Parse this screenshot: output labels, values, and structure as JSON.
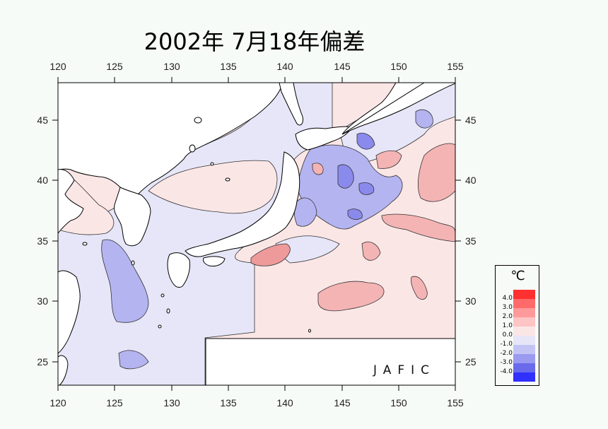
{
  "title": "2002年 7月18年偏差",
  "credit": "JAFIC",
  "map": {
    "lon_range": [
      120,
      155
    ],
    "lat_range": [
      23,
      48
    ],
    "lon_ticks": [
      "120",
      "125",
      "130",
      "135",
      "140",
      "145",
      "150",
      "155"
    ],
    "lat_ticks": [
      "25",
      "30",
      "35",
      "40",
      "45"
    ],
    "contour_interval": 1.0
  },
  "legend": {
    "unit": "℃",
    "labels": [
      "4.0",
      "3.0",
      "2.0",
      "1.0",
      "0.0",
      "-1.0",
      "-2.0",
      "-3.0",
      "-4.0"
    ],
    "colors": [
      "#ff3030",
      "#ff6a6a",
      "#ff9a9a",
      "#ffc4c4",
      "#fbe6e6",
      "#e6e6f8",
      "#c4c4f4",
      "#9a9af0",
      "#6a6aec",
      "#3030ff"
    ]
  },
  "colors": {
    "land": "#ffffff",
    "background": "#f7fbf7",
    "sea_neutral_warm": "#fbe6e6",
    "sea_neutral_cool": "#e6e6f8",
    "warm_1": "#f4b4b4",
    "warm_2": "#ee9a9a",
    "cool_1": "#c4c4f4",
    "cool_2": "#9a9af0",
    "cool_3": "#7a7aea"
  }
}
